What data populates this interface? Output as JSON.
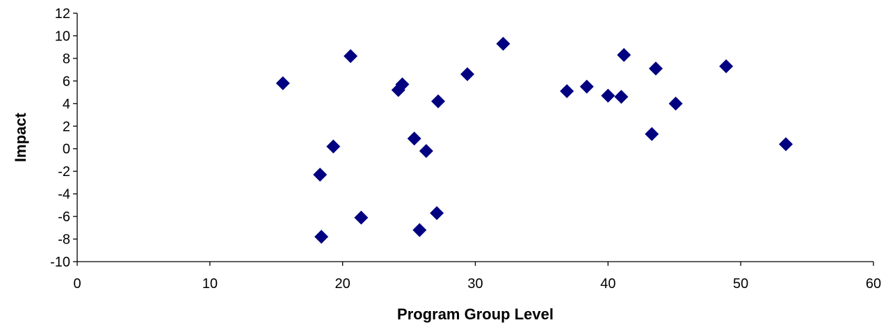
{
  "chart_data": {
    "type": "scatter",
    "xlabel": "Program Group Level",
    "ylabel": "Impact",
    "xlim": [
      0,
      60
    ],
    "ylim": [
      -10,
      12
    ],
    "xticks": [
      0,
      10,
      20,
      30,
      40,
      50,
      60
    ],
    "yticks": [
      -10,
      -8,
      -6,
      -4,
      -2,
      0,
      2,
      4,
      6,
      8,
      10,
      12
    ],
    "x_tick_labels": [
      "0",
      "10",
      "20",
      "30",
      "40",
      "50",
      "60"
    ],
    "y_tick_labels": [
      "-10",
      "-8",
      "-6",
      "-4",
      "-2",
      "0",
      "2",
      "4",
      "6",
      "8",
      "10",
      "12"
    ],
    "grid": false,
    "legend": "none",
    "marker": "diamond",
    "marker_color": "#000080",
    "series": [
      {
        "points": [
          {
            "x": 15.5,
            "y": 5.8
          },
          {
            "x": 18.3,
            "y": -2.3
          },
          {
            "x": 18.4,
            "y": -7.8
          },
          {
            "x": 19.3,
            "y": 0.2
          },
          {
            "x": 20.6,
            "y": 8.2
          },
          {
            "x": 21.4,
            "y": -6.1
          },
          {
            "x": 24.2,
            "y": 5.2
          },
          {
            "x": 24.5,
            "y": 5.7
          },
          {
            "x": 25.4,
            "y": 0.9
          },
          {
            "x": 25.8,
            "y": -7.2
          },
          {
            "x": 26.3,
            "y": -0.2
          },
          {
            "x": 27.1,
            "y": -5.7
          },
          {
            "x": 27.2,
            "y": 4.2
          },
          {
            "x": 29.4,
            "y": 6.6
          },
          {
            "x": 32.1,
            "y": 9.3
          },
          {
            "x": 36.9,
            "y": 5.1
          },
          {
            "x": 38.4,
            "y": 5.5
          },
          {
            "x": 40.0,
            "y": 4.7
          },
          {
            "x": 41.0,
            "y": 4.6
          },
          {
            "x": 41.2,
            "y": 8.3
          },
          {
            "x": 43.3,
            "y": 1.3
          },
          {
            "x": 43.6,
            "y": 7.1
          },
          {
            "x": 45.1,
            "y": 4.0
          },
          {
            "x": 48.9,
            "y": 7.3
          },
          {
            "x": 53.4,
            "y": 0.4
          }
        ]
      }
    ]
  }
}
